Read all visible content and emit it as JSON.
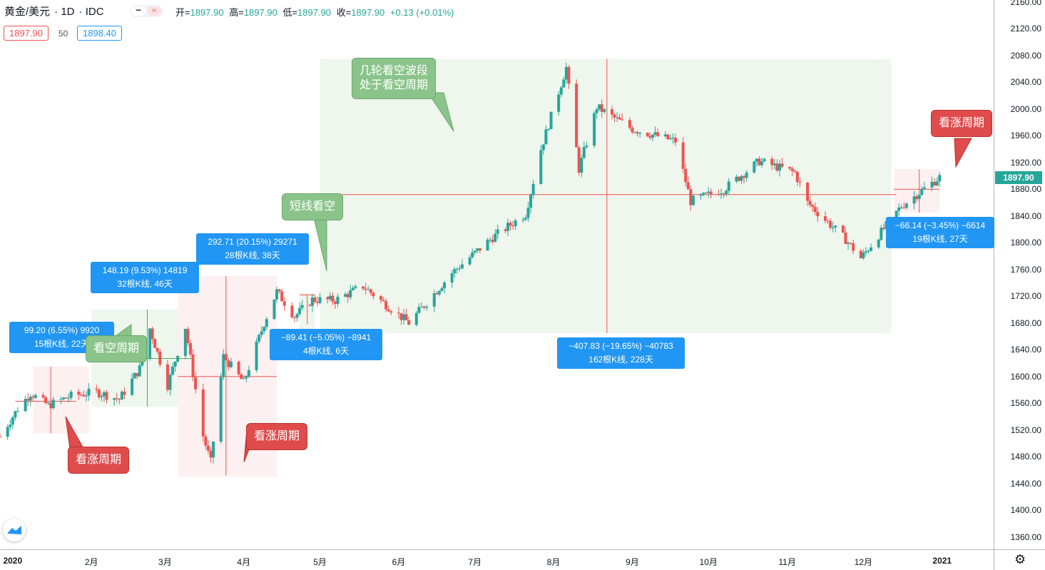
{
  "header": {
    "symbol": "黄金/美元",
    "interval": "1D",
    "source": "IDC",
    "ohlc": {
      "open_label": "开=",
      "open": "1897.90",
      "high_label": "高=",
      "high": "1897.90",
      "low_label": "低=",
      "low": "1897.90",
      "close_label": "收=",
      "close": "1897.90",
      "change": "+0.13 (+0.01%)"
    },
    "bid": "1897.90",
    "spread": "50",
    "ask": "1898.40"
  },
  "colors": {
    "up": "#26a69a",
    "down": "#ef5350",
    "zone_green": "#eef6ee",
    "zone_red": "#fdf0f0",
    "measure_label": "#2196f3"
  },
  "price_axis": [
    "2160.00",
    "2120.00",
    "2080.00",
    "2040.00",
    "2000.00",
    "1960.00",
    "1920.00",
    "1880.00",
    "1840.00",
    "1800.00",
    "1760.00",
    "1720.00",
    "1680.00",
    "1640.00",
    "1600.00",
    "1560.00",
    "1520.00",
    "1480.00",
    "1440.00",
    "1400.00",
    "1360.00"
  ],
  "current_price_label": "1897.90",
  "time_axis": [
    {
      "label": "2020",
      "bold": true
    },
    {
      "label": "2月",
      "bold": false
    },
    {
      "label": "3月",
      "bold": false
    },
    {
      "label": "4月",
      "bold": false
    },
    {
      "label": "5月",
      "bold": false
    },
    {
      "label": "6月",
      "bold": false
    },
    {
      "label": "7月",
      "bold": false
    },
    {
      "label": "8月",
      "bold": false
    },
    {
      "label": "9月",
      "bold": false
    },
    {
      "label": "10月",
      "bold": false
    },
    {
      "label": "11月",
      "bold": false
    },
    {
      "label": "12月",
      "bold": false
    },
    {
      "label": "2021",
      "bold": true
    }
  ],
  "measurements": [
    {
      "line1": "99.20 (6.55%) 9920",
      "line2": "15根K线, 22天"
    },
    {
      "line1": "148.19 (9.53%) 14819",
      "line2": "32根K线, 46天"
    },
    {
      "line1": "292.71 (20.15%) 29271",
      "line2": "28根K线, 38天"
    },
    {
      "line1": "−89.41 (−5.05%) −8941",
      "line2": "4根K线, 6天"
    },
    {
      "line1": "−407.83 (−19.65%) −40783",
      "line2": "162根K线, 228天"
    },
    {
      "line1": "−66.14 (−3.45%) −6614",
      "line2": "19根K线, 27天"
    }
  ],
  "callouts": {
    "bear_waves_line1": "几轮看空波段",
    "bear_waves_line2": "处于看空周期",
    "short_bear": "短线看空",
    "bear_cycle": "看空周期",
    "bull_cycle_1": "看涨周期",
    "bull_cycle_2": "看涨周期",
    "bull_cycle_3": "看涨周期"
  },
  "chart_data": {
    "type": "candlestick",
    "title": "",
    "xlabel": "",
    "ylabel": "",
    "ylim": [
      1340,
      2170
    ],
    "x_range": [
      "2019-12-27",
      "2021-01-01"
    ],
    "series": [
      {
        "name": "",
        "note_points": "approximate daily closes read from chart (date, close)",
        "x": [
          "2019-12-27",
          "2020-01-03",
          "2020-01-08",
          "2020-01-15",
          "2020-01-24",
          "2020-02-03",
          "2020-02-12",
          "2020-02-20",
          "2020-02-24",
          "2020-03-02",
          "2020-03-09",
          "2020-03-16",
          "2020-03-19",
          "2020-03-24",
          "2020-04-01",
          "2020-04-09",
          "2020-04-14",
          "2020-04-21",
          "2020-04-28",
          "2020-05-07",
          "2020-05-18",
          "2020-06-05",
          "2020-06-22",
          "2020-07-08",
          "2020-07-21",
          "2020-07-27",
          "2020-08-06",
          "2020-08-11",
          "2020-08-18",
          "2020-09-01",
          "2020-09-18",
          "2020-09-24",
          "2020-10-07",
          "2020-10-21",
          "2020-11-04",
          "2020-11-09",
          "2020-11-24",
          "2020-11-30",
          "2020-12-16",
          "2020-12-31"
        ],
        "values": [
          1510,
          1552,
          1575,
          1557,
          1571,
          1577,
          1566,
          1612,
          1672,
          1587,
          1674,
          1511,
          1472,
          1630,
          1591,
          1680,
          1727,
          1690,
          1715,
          1714,
          1735,
          1680,
          1755,
          1808,
          1843,
          1940,
          2062,
          1910,
          2003,
          1970,
          1952,
          1862,
          1880,
          1922,
          1905,
          1860,
          1805,
          1777,
          1855,
          1898
        ]
      }
    ],
    "annotations": [
      "几轮看空波段 处于看空周期",
      "短线看空",
      "看空周期",
      "看涨周期",
      "看涨周期",
      "看涨周期"
    ]
  }
}
